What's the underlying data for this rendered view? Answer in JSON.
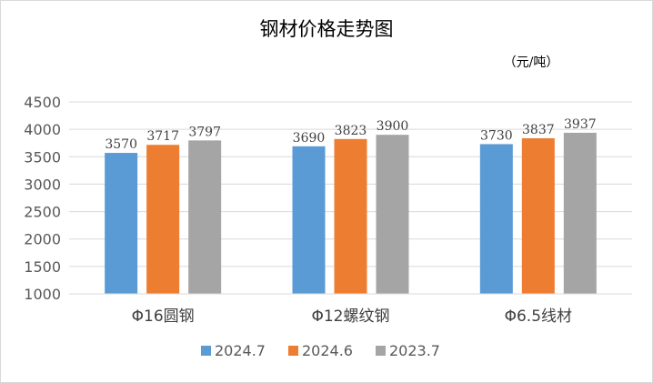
{
  "chart_data": {
    "type": "bar",
    "title": "钢材价格走势图",
    "unit_label": "（元/吨）",
    "categories": [
      "Φ16圆钢",
      "Φ12螺纹钢",
      "Φ6.5线材"
    ],
    "series": [
      {
        "name": "2024.7",
        "values": [
          3570,
          3690,
          3730
        ],
        "color": "#5b9bd5"
      },
      {
        "name": "2024.6",
        "values": [
          3717,
          3823,
          3837
        ],
        "color": "#ed7d31"
      },
      {
        "name": "2023.7",
        "values": [
          3797,
          3900,
          3937
        ],
        "color": "#a5a5a5"
      }
    ],
    "ylim": [
      1000,
      4500
    ],
    "yticks": [
      1000,
      1500,
      2000,
      2500,
      3000,
      3500,
      4000,
      4500
    ],
    "grid": true,
    "gridline_color": "#d9d9d9",
    "legend_position": "bottom"
  }
}
